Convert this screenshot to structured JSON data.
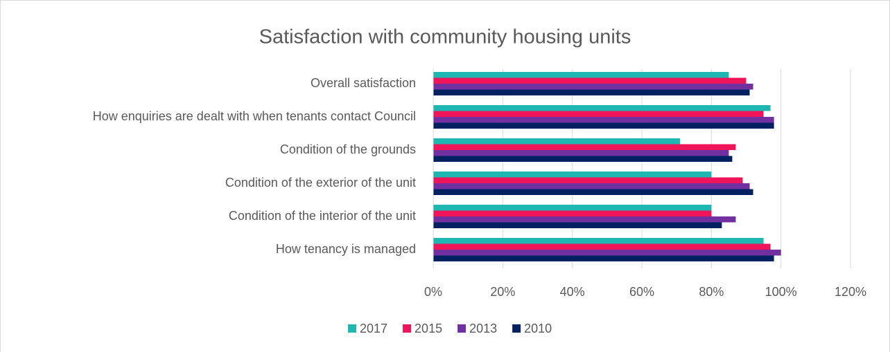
{
  "chart_data": {
    "type": "barh",
    "title": "Satisfaction with community housing units",
    "categories": [
      "Overall satisfaction",
      "How enquiries are dealt with when tenants contact Council",
      "Condition of the grounds",
      "Condition of the exterior of the unit",
      "Condition of the interior of the unit",
      "How tenancy is managed"
    ],
    "series": [
      {
        "name": "2017",
        "color": "#1fb8b0",
        "values": [
          85,
          97,
          71,
          80,
          80,
          95
        ]
      },
      {
        "name": "2015",
        "color": "#f0145a",
        "values": [
          90,
          95,
          87,
          89,
          80,
          97
        ]
      },
      {
        "name": "2013",
        "color": "#7030a0",
        "values": [
          92,
          98,
          85,
          91,
          87,
          100
        ]
      },
      {
        "name": "2010",
        "color": "#002060",
        "values": [
          91,
          98,
          86,
          92,
          83,
          98
        ]
      }
    ],
    "xlim": [
      0,
      120
    ],
    "xticks": [
      {
        "value": 0,
        "label": "0%"
      },
      {
        "value": 20,
        "label": "20%"
      },
      {
        "value": 40,
        "label": "40%"
      },
      {
        "value": 60,
        "label": "60%"
      },
      {
        "value": 80,
        "label": "80%"
      },
      {
        "value": 100,
        "label": "100%"
      },
      {
        "value": 120,
        "label": "120%"
      }
    ],
    "grid": true
  }
}
